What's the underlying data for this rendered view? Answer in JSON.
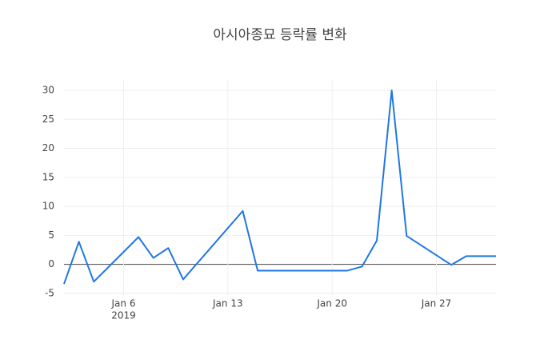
{
  "chart_data": {
    "type": "line",
    "title": "아시아종묘 등락률 변화",
    "x": [
      "2019-01-02",
      "2019-01-03",
      "2019-01-04",
      "2019-01-07",
      "2019-01-08",
      "2019-01-09",
      "2019-01-10",
      "2019-01-14",
      "2019-01-15",
      "2019-01-21",
      "2019-01-22",
      "2019-01-23",
      "2019-01-24",
      "2019-01-25",
      "2019-01-28",
      "2019-01-29",
      "2019-01-30",
      "2019-01-31"
    ],
    "series": [
      {
        "color": "#1f77e4",
        "values": [
          -3.4,
          3.9,
          -3.0,
          4.7,
          1.1,
          2.8,
          -2.6,
          9.2,
          -1.1,
          -1.1,
          -0.4,
          4.1,
          30,
          4.9,
          -0.1,
          1.4,
          1.4,
          1.4
        ]
      }
    ],
    "xlim": [
      "2019-01-02",
      "2019-01-31"
    ],
    "xticks": [
      {
        "value": "2019-01-06",
        "label": "Jan 6"
      },
      {
        "value": "2019-01-13",
        "label": "Jan 13"
      },
      {
        "value": "2019-01-20",
        "label": "Jan 20"
      },
      {
        "value": "2019-01-27",
        "label": "Jan 27"
      }
    ],
    "xtick_year": "2019",
    "ylim": [
      -5.3,
      31.8
    ],
    "yticks": [
      -5,
      0,
      5,
      10,
      15,
      20,
      25,
      30
    ],
    "grid": true
  }
}
